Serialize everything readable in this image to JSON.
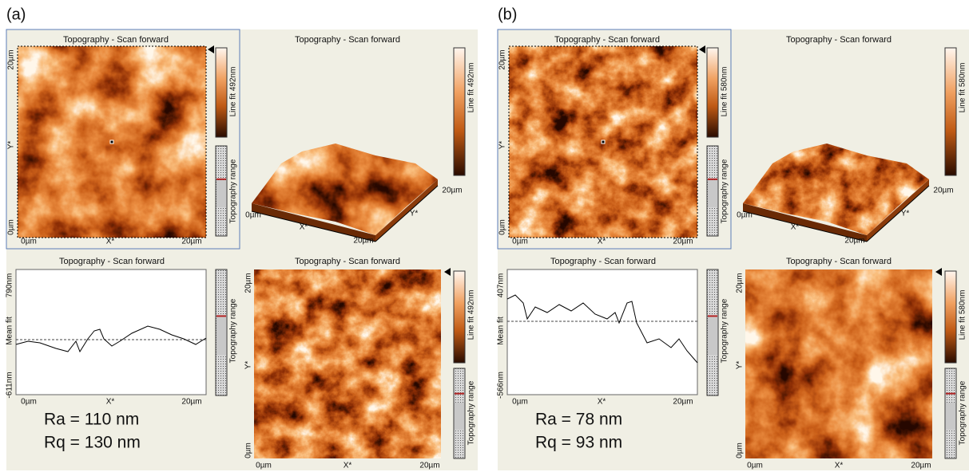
{
  "panels": [
    {
      "label": "(a)",
      "image": {
        "title": "Topography - Scan forward",
        "y_axis": [
          "20µm",
          "Y*",
          "0µm"
        ],
        "x_axis": [
          "0µm",
          "X*",
          "20µm"
        ],
        "colorbar_label": "Line fit 492nm",
        "range_label": "Topography range"
      },
      "view3d": {
        "title": "Topography - Scan forward",
        "colorbar_label": "Line fit 492nm",
        "x_axis": [
          "0µm",
          "X*",
          "20µm"
        ],
        "y_axis": [
          "Y*",
          "20µm"
        ]
      },
      "profile": {
        "title": "Topography - Scan forward",
        "y_axis": [
          "790nm",
          "Mean fit",
          "-611nm"
        ],
        "x_axis": [
          "0µm",
          "X*",
          "20µm"
        ],
        "range_label": "Topography range"
      },
      "image2": {
        "title": "Topography - Scan forward",
        "y_axis": [
          "20µm",
          "Y*",
          "0µm"
        ],
        "x_axis": [
          "0µm",
          "X*",
          "20µm"
        ],
        "colorbar_label": "Line fit 492nm",
        "range_label": "Topography range"
      },
      "roughness": [
        "Ra = 110 nm",
        "Rq = 130 nm"
      ]
    },
    {
      "label": "(b)",
      "image": {
        "title": "Topography - Scan forward",
        "y_axis": [
          "20µm",
          "Y*",
          "0µm"
        ],
        "x_axis": [
          "0µm",
          "X*",
          "20µm"
        ],
        "colorbar_label": "Line fit 580nm",
        "range_label": "Topography range"
      },
      "view3d": {
        "title": "Topography - Scan forward",
        "colorbar_label": "Line fit 580nm",
        "x_axis": [
          "0µm",
          "X*",
          "20µm"
        ],
        "y_axis": [
          "Y*",
          "20µm"
        ]
      },
      "profile": {
        "title": "Topography - Scan forward",
        "y_axis": [
          "407nm",
          "Mean fit",
          "-566nm"
        ],
        "x_axis": [
          "0µm",
          "X*",
          "20µm"
        ],
        "range_label": "Topography range"
      },
      "image2": {
        "title": "Topography - Scan forward",
        "y_axis": [
          "20µm",
          "Y*",
          "0µm"
        ],
        "x_axis": [
          "0µm",
          "X*",
          "20µm"
        ],
        "colorbar_label": "Line fit 580nm",
        "range_label": "Topography range"
      },
      "roughness": [
        "Ra = 78 nm",
        "Rq = 93 nm"
      ]
    }
  ]
}
